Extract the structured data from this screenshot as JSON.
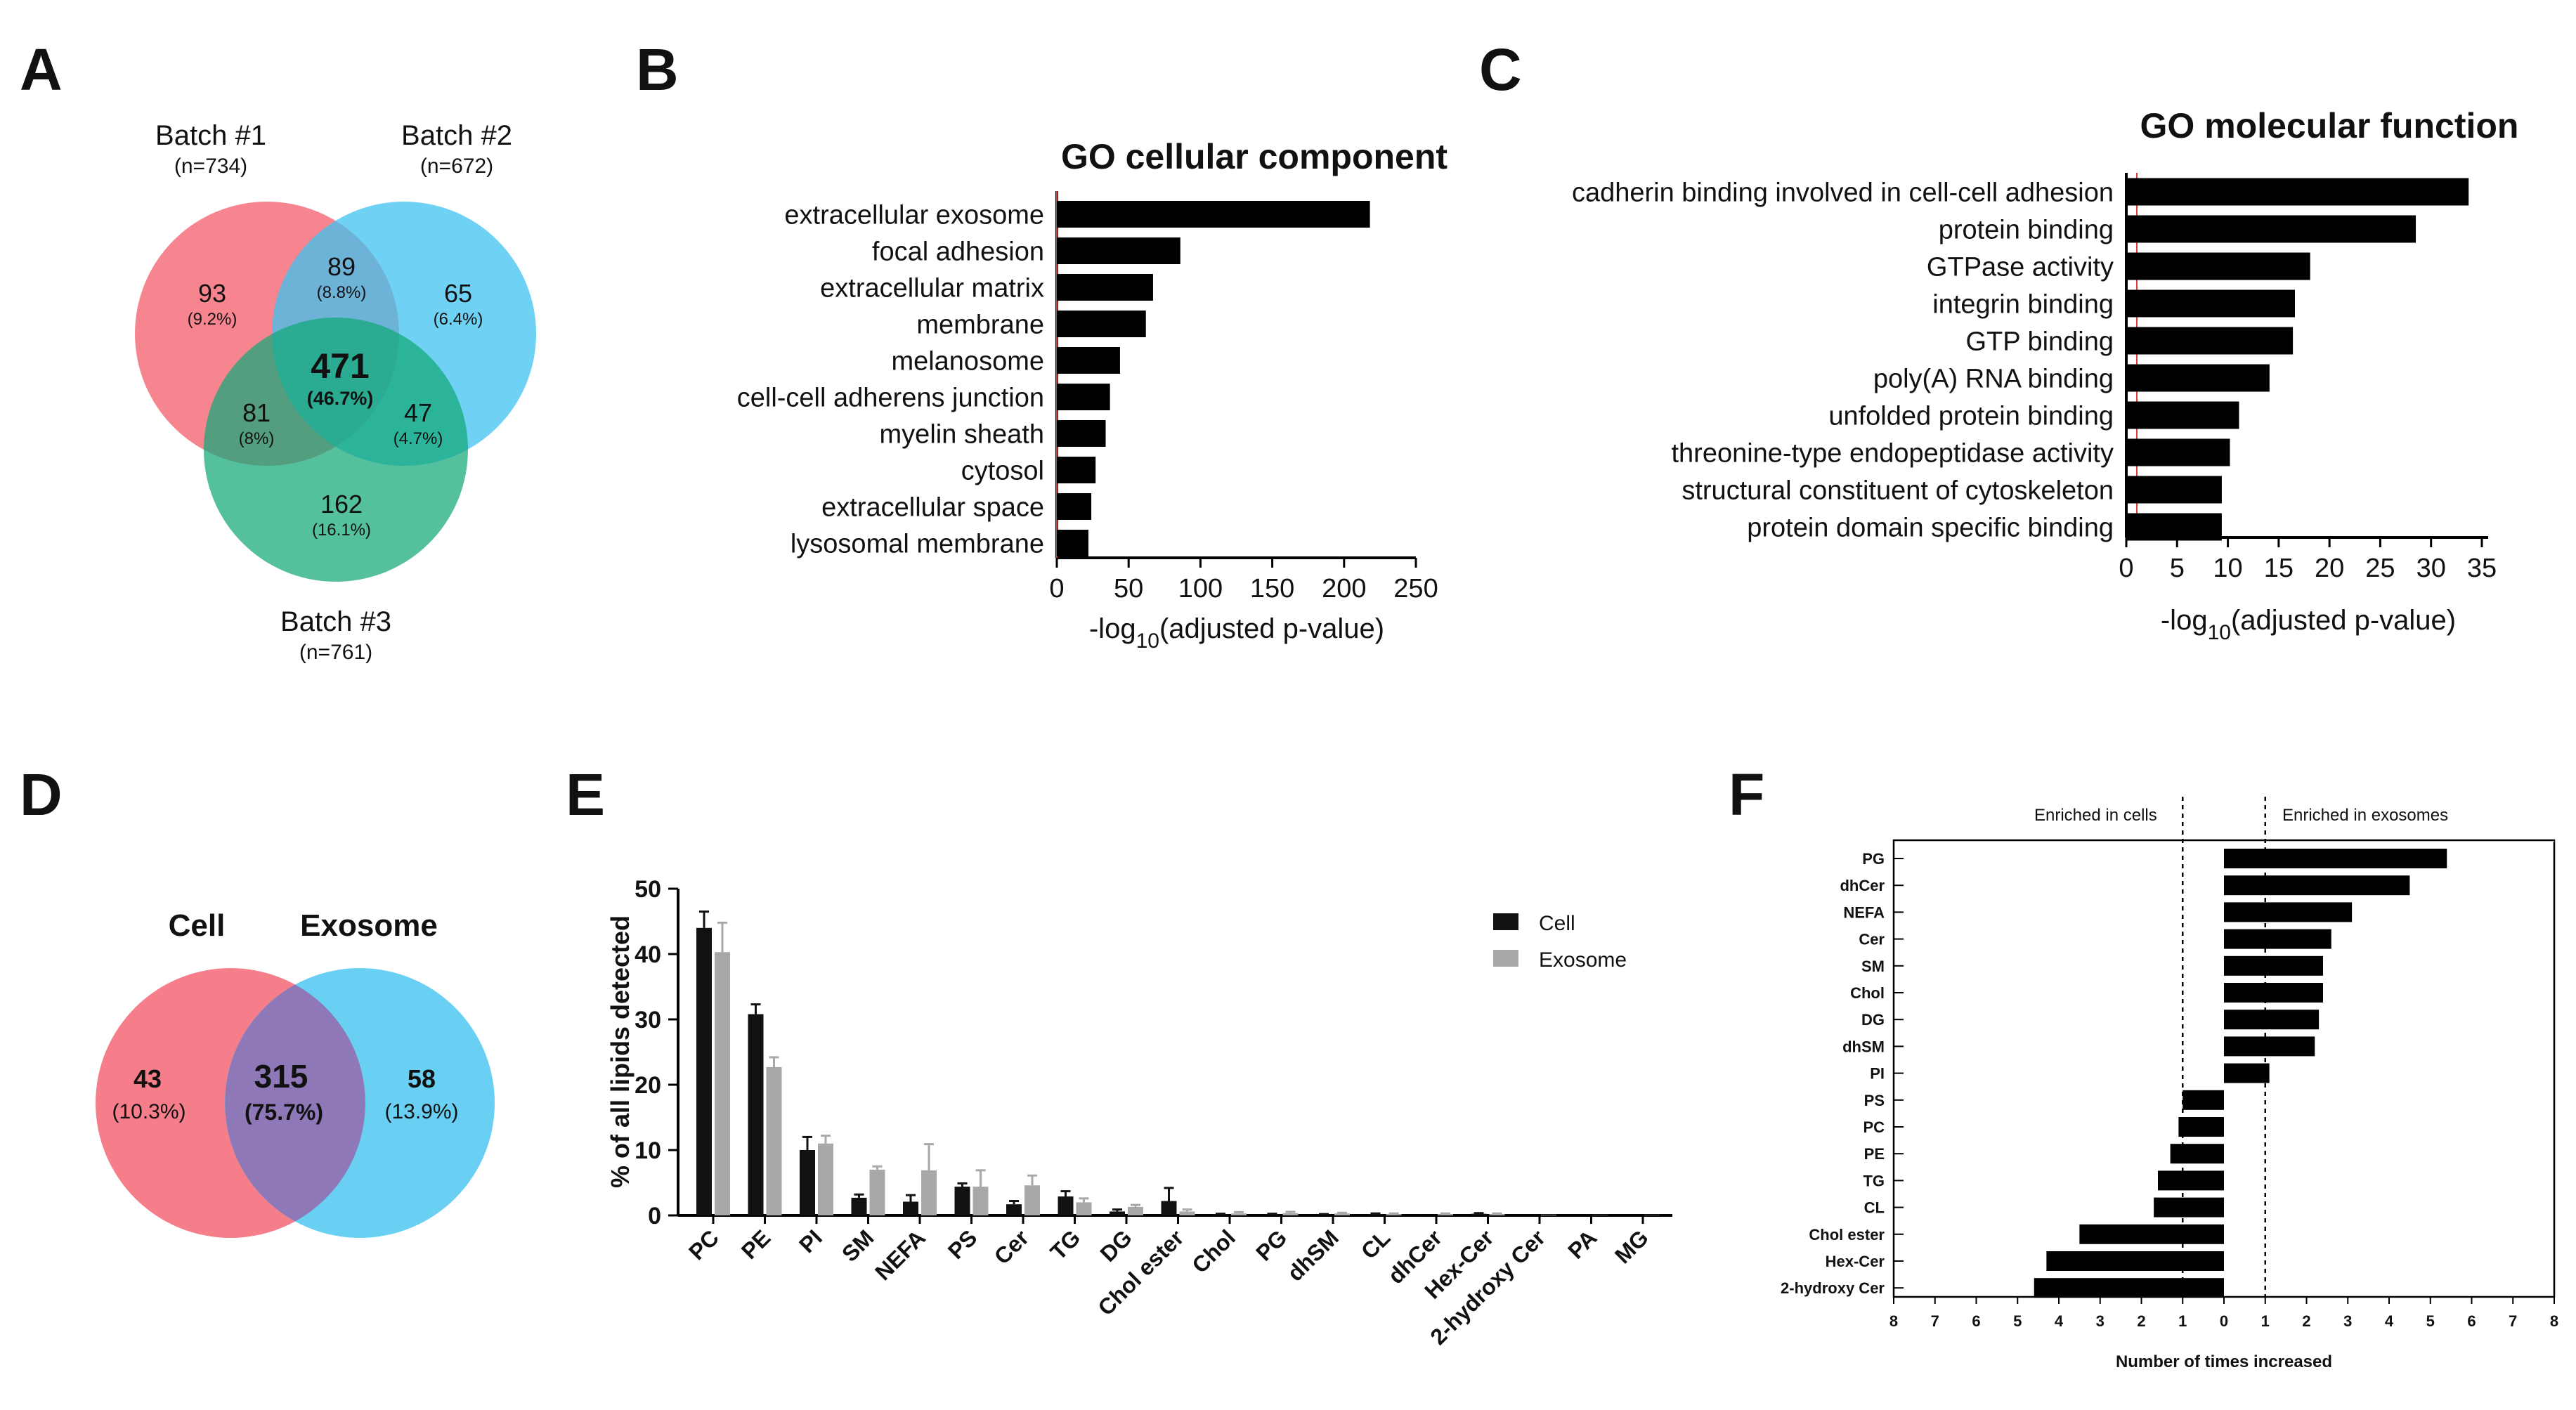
{
  "colors": {
    "red": "#f5707d",
    "blue": "#3fc3f0",
    "green": "#12a877",
    "cell": "#111111",
    "exosome": "#a8a8a8"
  },
  "panels": {
    "A": "A",
    "B": "B",
    "C": "C",
    "D": "D",
    "E": "E",
    "F": "F"
  },
  "venn_proteins": {
    "sets": [
      {
        "name": "Batch #1",
        "n": "(n=734)"
      },
      {
        "name": "Batch #2",
        "n": "(n=672)"
      },
      {
        "name": "Batch #3",
        "n": "(n=761)"
      }
    ],
    "regions": {
      "only1": {
        "count": "93",
        "pct": "(9.2%)"
      },
      "only2": {
        "count": "65",
        "pct": "(6.4%)"
      },
      "only3": {
        "count": "162",
        "pct": "(16.1%)"
      },
      "r12": {
        "count": "89",
        "pct": "(8.8%)"
      },
      "r13": {
        "count": "81",
        "pct": "(8%)"
      },
      "r23": {
        "count": "47",
        "pct": "(4.7%)"
      },
      "all": {
        "count": "471",
        "pct": "(46.7%)"
      }
    }
  },
  "venn_lipids": {
    "sets": [
      {
        "name": "Cell"
      },
      {
        "name": "Exosome"
      }
    ],
    "regions": {
      "cell_only": {
        "count": "43",
        "pct": "(10.3%)"
      },
      "both": {
        "count": "315",
        "pct": "(75.7%)"
      },
      "exo_only": {
        "count": "58",
        "pct": "(13.9%)"
      }
    }
  },
  "chart_data": [
    {
      "type": "bar",
      "orientation": "horizontal",
      "title": "GO cellular component",
      "xlabel_pre": "-log",
      "xlabel_sub": "10",
      "xlabel_post": "(adjusted p-value)",
      "xlim": [
        0,
        250
      ],
      "ticks": [
        0,
        50,
        100,
        150,
        200,
        250
      ],
      "categories": [
        "extracellular exosome",
        "focal adhesion",
        "extracellular matrix",
        "membrane",
        "melanosome",
        "cell-cell adherens junction",
        "myelin sheath",
        "cytosol",
        "extracellular space",
        "lysosomal membrane"
      ],
      "values": [
        218,
        86,
        67,
        62,
        44,
        37,
        34,
        27,
        24,
        22
      ]
    },
    {
      "type": "bar",
      "orientation": "horizontal",
      "title": "GO molecular function",
      "xlabel_pre": "-log",
      "xlabel_sub": "10",
      "xlabel_post": "(adjusted p-value)",
      "xlim": [
        0,
        35
      ],
      "ticks": [
        0,
        5,
        10,
        15,
        20,
        25,
        30,
        35
      ],
      "categories": [
        "cadherin binding involved in cell-cell adhesion",
        "protein binding",
        "GTPase activity",
        "integrin binding",
        "GTP binding",
        "poly(A) RNA binding",
        "unfolded protein binding",
        "threonine-type endopeptidase activity",
        "structural constituent of cytoskeleton",
        "protein domain specific binding"
      ],
      "values": [
        33.7,
        28.5,
        18.1,
        16.6,
        16.4,
        14.1,
        11.1,
        10.2,
        9.4,
        9.4
      ]
    },
    {
      "type": "bar",
      "orientation": "vertical",
      "ylabel": "% of all lipids detected",
      "ylim": [
        0,
        50
      ],
      "ticks": [
        0,
        10,
        20,
        30,
        40,
        50
      ],
      "categories": [
        "PC",
        "PE",
        "PI",
        "SM",
        "NEFA",
        "PS",
        "Cer",
        "TG",
        "DG",
        "Chol ester",
        "Chol",
        "PG",
        "dhSM",
        "CL",
        "dhCer",
        "Hex-Cer",
        "2-hydroxy Cer",
        "PA",
        "MG"
      ],
      "series": [
        {
          "name": "Cell",
          "values": [
            44,
            30.8,
            10,
            2.7,
            2.1,
            4.4,
            1.7,
            2.9,
            0.6,
            2.2,
            0.15,
            0.15,
            0.1,
            0.2,
            0.08,
            0.25,
            0.05,
            0.02,
            0.02
          ],
          "errors": [
            2.5,
            1.5,
            2.0,
            0.5,
            1.0,
            0.5,
            0.5,
            0.8,
            0.3,
            2.0,
            0.1,
            0.1,
            0.1,
            0.1,
            0.05,
            0.1,
            0.05,
            0.02,
            0.02
          ]
        },
        {
          "name": "Exosome",
          "values": [
            40.3,
            22.7,
            11,
            7,
            6.9,
            4.4,
            4.6,
            2,
            1.3,
            0.6,
            0.3,
            0.35,
            0.3,
            0.2,
            0.2,
            0.2,
            0.1,
            0.05,
            0.05
          ],
          "errors": [
            4.5,
            1.5,
            1.2,
            0.5,
            4.0,
            2.5,
            1.5,
            0.6,
            0.3,
            0.3,
            0.2,
            0.2,
            0.1,
            0.1,
            0.1,
            0.1,
            0.05,
            0.02,
            0.02
          ]
        }
      ]
    },
    {
      "type": "bar",
      "orientation": "horizontal-diverging",
      "xlabel": "Number of times increased",
      "xlim": [
        -8,
        8
      ],
      "ticks": [
        "8",
        "7",
        "6",
        "5",
        "4",
        "3",
        "2",
        "1",
        "0",
        "1",
        "2",
        "3",
        "4",
        "5",
        "6",
        "7",
        "8"
      ],
      "annotations": [
        "Enriched in cells",
        "Enriched in exosomes"
      ],
      "reference_lines": [
        -1,
        1
      ],
      "categories": [
        "PG",
        "dhCer",
        "NEFA",
        "Cer",
        "SM",
        "Chol",
        "DG",
        "dhSM",
        "PI",
        "PS",
        "PC",
        "PE",
        "TG",
        "CL",
        "Chol ester",
        "Hex-Cer",
        "2-hydroxy Cer"
      ],
      "values": [
        5.4,
        4.5,
        3.1,
        2.6,
        2.4,
        2.4,
        2.3,
        2.2,
        1.1,
        -1.0,
        -1.1,
        -1.3,
        -1.6,
        -1.7,
        -3.5,
        -4.3,
        -4.6
      ]
    }
  ]
}
